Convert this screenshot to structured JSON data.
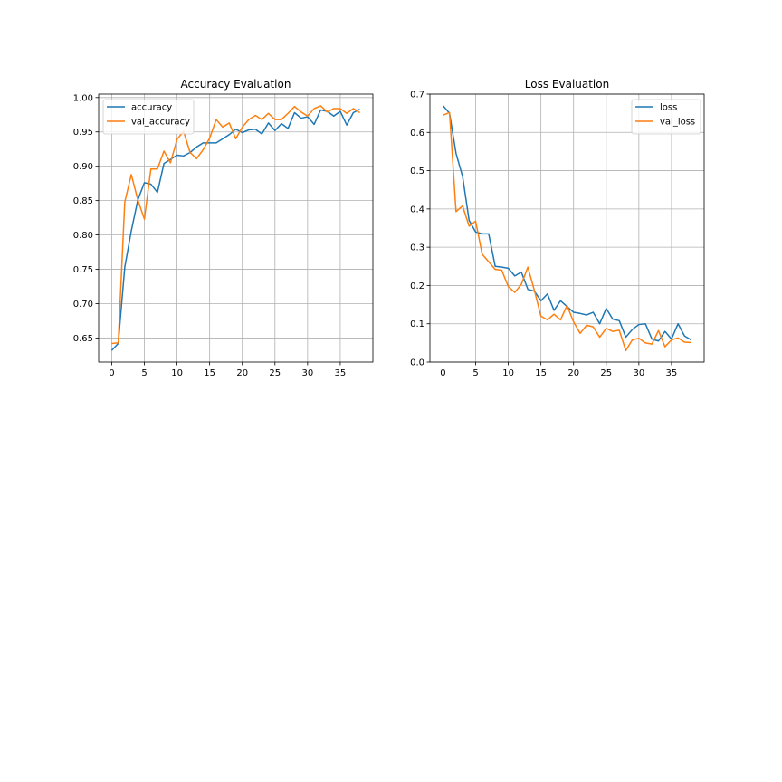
{
  "chart_data": [
    {
      "type": "line",
      "title": "Accuracy Evaluation",
      "xlim": [
        -2,
        40
      ],
      "ylim": [
        0.615,
        1.005
      ],
      "xticks": [
        0,
        5,
        10,
        15,
        20,
        25,
        30,
        35
      ],
      "xtick_labels": [
        "0",
        "5",
        "10",
        "15",
        "20",
        "25",
        "30",
        "35"
      ],
      "yticks": [
        0.65,
        0.7,
        0.75,
        0.8,
        0.85,
        0.9,
        0.95,
        1.0
      ],
      "ytick_labels": [
        "0.65",
        "0.70",
        "0.75",
        "0.80",
        "0.85",
        "0.90",
        "0.95",
        "1.00"
      ],
      "grid": true,
      "legend_position": "upper-left",
      "x": [
        0,
        1,
        2,
        3,
        4,
        5,
        6,
        7,
        8,
        9,
        10,
        11,
        12,
        13,
        14,
        15,
        16,
        17,
        18,
        19,
        20,
        21,
        22,
        23,
        24,
        25,
        26,
        27,
        28,
        29,
        30,
        31,
        32,
        33,
        34,
        35,
        36,
        37,
        38
      ],
      "series": [
        {
          "name": "accuracy",
          "color": "#1f77b4",
          "values": [
            0.632,
            0.642,
            0.753,
            0.806,
            0.851,
            0.876,
            0.874,
            0.862,
            0.904,
            0.91,
            0.916,
            0.915,
            0.92,
            0.928,
            0.934,
            0.934,
            0.934,
            0.94,
            0.946,
            0.954,
            0.949,
            0.953,
            0.954,
            0.947,
            0.963,
            0.952,
            0.962,
            0.955,
            0.978,
            0.97,
            0.972,
            0.961,
            0.982,
            0.98,
            0.973,
            0.98,
            0.96,
            0.978,
            0.983
          ]
        },
        {
          "name": "val_accuracy",
          "color": "#ff7f0e",
          "values": [
            0.642,
            0.643,
            0.848,
            0.888,
            0.851,
            0.823,
            0.896,
            0.896,
            0.922,
            0.905,
            0.939,
            0.951,
            0.92,
            0.911,
            0.924,
            0.941,
            0.968,
            0.957,
            0.963,
            0.94,
            0.957,
            0.968,
            0.974,
            0.968,
            0.977,
            0.968,
            0.968,
            0.977,
            0.987,
            0.979,
            0.973,
            0.984,
            0.988,
            0.979,
            0.984,
            0.984,
            0.977,
            0.984,
            0.978
          ]
        }
      ]
    },
    {
      "type": "line",
      "title": "Loss Evaluation",
      "xlim": [
        -2,
        40
      ],
      "ylim": [
        0.0,
        0.7
      ],
      "xticks": [
        0,
        5,
        10,
        15,
        20,
        25,
        30,
        35
      ],
      "xtick_labels": [
        "0",
        "5",
        "10",
        "15",
        "20",
        "25",
        "30",
        "35"
      ],
      "yticks": [
        0.0,
        0.1,
        0.2,
        0.3,
        0.4,
        0.5,
        0.6,
        0.7
      ],
      "ytick_labels": [
        "0.0",
        "0.1",
        "0.2",
        "0.3",
        "0.4",
        "0.5",
        "0.6",
        "0.7"
      ],
      "grid": true,
      "legend_position": "upper-right",
      "x": [
        0,
        1,
        2,
        3,
        4,
        5,
        6,
        7,
        8,
        9,
        10,
        11,
        12,
        13,
        14,
        15,
        16,
        17,
        18,
        19,
        20,
        21,
        22,
        23,
        24,
        25,
        26,
        27,
        28,
        29,
        30,
        31,
        32,
        33,
        34,
        35,
        36,
        37,
        38
      ],
      "series": [
        {
          "name": "loss",
          "color": "#1f77b4",
          "values": [
            0.67,
            0.65,
            0.545,
            0.485,
            0.37,
            0.34,
            0.335,
            0.335,
            0.25,
            0.248,
            0.245,
            0.225,
            0.235,
            0.19,
            0.185,
            0.16,
            0.178,
            0.135,
            0.16,
            0.145,
            0.13,
            0.127,
            0.123,
            0.13,
            0.1,
            0.14,
            0.112,
            0.108,
            0.065,
            0.085,
            0.098,
            0.1,
            0.06,
            0.055,
            0.08,
            0.06,
            0.1,
            0.068,
            0.058
          ]
        },
        {
          "name": "val_loss",
          "color": "#ff7f0e",
          "values": [
            0.645,
            0.652,
            0.393,
            0.408,
            0.355,
            0.368,
            0.282,
            0.262,
            0.242,
            0.24,
            0.197,
            0.182,
            0.203,
            0.248,
            0.187,
            0.12,
            0.11,
            0.125,
            0.11,
            0.148,
            0.105,
            0.075,
            0.096,
            0.092,
            0.065,
            0.088,
            0.08,
            0.083,
            0.03,
            0.058,
            0.062,
            0.05,
            0.047,
            0.082,
            0.04,
            0.058,
            0.063,
            0.052,
            0.051
          ]
        }
      ]
    }
  ]
}
